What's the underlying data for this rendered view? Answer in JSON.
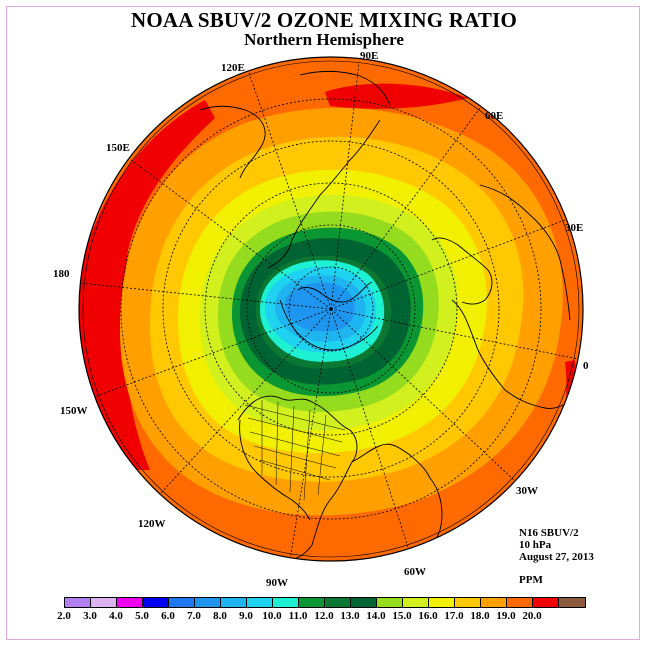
{
  "title": "NOAA SBUV/2 OZONE MIXING RATIO",
  "subtitle": "Northern Hemisphere",
  "longitudes": [
    "90E",
    "60E",
    "30E",
    "0",
    "30W",
    "60W",
    "90W",
    "120W",
    "150W",
    "180",
    "150E",
    "120E"
  ],
  "info": {
    "instrument": "N16 SBUV/2",
    "level": "10 hPa",
    "date": "August 27, 2013"
  },
  "units": "PPM",
  "colorbar": {
    "labels": [
      "2.0",
      "3.0",
      "4.0",
      "5.0",
      "6.0",
      "7.0",
      "8.0",
      "9.0",
      "10.0",
      "11.0",
      "12.0",
      "13.0",
      "14.0",
      "15.0",
      "16.0",
      "17.0",
      "18.0",
      "19.0",
      "20.0"
    ],
    "colors": [
      "#b27ff0",
      "#dcb4f2",
      "#f000f0",
      "#0000f0",
      "#1e78f0",
      "#1e96f0",
      "#1eb4f0",
      "#1ed2f0",
      "#1ef0d2",
      "#0a9632",
      "#0a7832",
      "#006432",
      "#96dc1e",
      "#d2f01e",
      "#f0f000",
      "#ffc800",
      "#ffa000",
      "#ff6a00",
      "#f00000",
      "#8c5a3c"
    ]
  }
}
